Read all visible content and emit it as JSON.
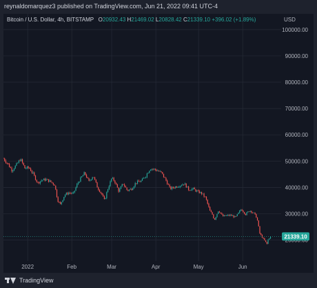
{
  "header": {
    "text": "reynaldomarquez3 published on TradingView.com, Jun 21, 2022 09:41 UTC-4"
  },
  "legend": {
    "symbol": "Bitcoin / U.S. Dollar, 4h, BITSTAMP",
    "o_label": "O",
    "o_value": "20932.43",
    "h_label": "H",
    "h_value": "21469.02",
    "l_label": "L",
    "l_value": "20828.42",
    "c_label": "C",
    "c_value": "21339.10",
    "change": "+396.02 (+1.89%)"
  },
  "footer": {
    "logo_text": "TradingView"
  },
  "colors": {
    "up": "#26a69a",
    "down": "#ef5350",
    "price_badge": "#26a69a",
    "grid": "#262b37",
    "axis_text": "#b2b5be"
  },
  "chart_data": {
    "type": "candlestick",
    "currency_label": "USD",
    "ylim": [
      12000,
      106000
    ],
    "yticks": [
      {
        "value": 100000,
        "label": "100000.00"
      },
      {
        "value": 90000,
        "label": "90000.00"
      },
      {
        "value": 80000,
        "label": "80000.00"
      },
      {
        "value": 70000,
        "label": "70000.00"
      },
      {
        "value": 60000,
        "label": "60000.00"
      },
      {
        "value": 50000,
        "label": "50000.00"
      },
      {
        "value": 40000,
        "label": "40000.00"
      },
      {
        "value": 30000,
        "label": "30000.00"
      },
      {
        "value": 20000,
        "label": "20000.00"
      }
    ],
    "xticks": [
      {
        "date": "2022-01-01",
        "label": "2022"
      },
      {
        "date": "2022-02-01",
        "label": "Feb"
      },
      {
        "date": "2022-03-01",
        "label": "Mar"
      },
      {
        "date": "2022-04-01",
        "label": "Apr"
      },
      {
        "date": "2022-05-01",
        "label": "May"
      },
      {
        "date": "2022-06-01",
        "label": "Jun"
      }
    ],
    "x_range": [
      "2021-12-15",
      "2022-06-28"
    ],
    "last_price": 21339.1,
    "last_price_label": "21339.10",
    "price_path": [
      [
        "2021-12-15",
        51000
      ],
      [
        "2021-12-18",
        49000
      ],
      [
        "2021-12-21",
        46500
      ],
      [
        "2021-12-24",
        48500
      ],
      [
        "2021-12-27",
        50800
      ],
      [
        "2021-12-30",
        47300
      ],
      [
        "2022-01-02",
        47500
      ],
      [
        "2022-01-05",
        45000
      ],
      [
        "2022-01-08",
        41700
      ],
      [
        "2022-01-11",
        42800
      ],
      [
        "2022-01-14",
        43000
      ],
      [
        "2022-01-17",
        42200
      ],
      [
        "2022-01-20",
        41000
      ],
      [
        "2022-01-22",
        35200
      ],
      [
        "2022-01-24",
        33500
      ],
      [
        "2022-01-27",
        37200
      ],
      [
        "2022-01-30",
        38000
      ],
      [
        "2022-02-02",
        37500
      ],
      [
        "2022-02-05",
        41500
      ],
      [
        "2022-02-08",
        44000
      ],
      [
        "2022-02-10",
        45500
      ],
      [
        "2022-02-13",
        42200
      ],
      [
        "2022-02-16",
        44500
      ],
      [
        "2022-02-19",
        40000
      ],
      [
        "2022-02-22",
        37500
      ],
      [
        "2022-02-24",
        35000
      ],
      [
        "2022-02-26",
        39000
      ],
      [
        "2022-03-01",
        43500
      ],
      [
        "2022-03-03",
        42500
      ],
      [
        "2022-03-06",
        38500
      ],
      [
        "2022-03-09",
        41500
      ],
      [
        "2022-03-12",
        38800
      ],
      [
        "2022-03-15",
        39500
      ],
      [
        "2022-03-18",
        41800
      ],
      [
        "2022-03-22",
        42500
      ],
      [
        "2022-03-25",
        44500
      ],
      [
        "2022-03-28",
        47200
      ],
      [
        "2022-03-30",
        47000
      ],
      [
        "2022-04-02",
        46500
      ],
      [
        "2022-04-05",
        45500
      ],
      [
        "2022-04-08",
        42800
      ],
      [
        "2022-04-11",
        39500
      ],
      [
        "2022-04-14",
        40100
      ],
      [
        "2022-04-18",
        40800
      ],
      [
        "2022-04-21",
        41500
      ],
      [
        "2022-04-24",
        39200
      ],
      [
        "2022-04-27",
        39500
      ],
      [
        "2022-04-30",
        38500
      ],
      [
        "2022-05-03",
        37800
      ],
      [
        "2022-05-06",
        36000
      ],
      [
        "2022-05-09",
        31000
      ],
      [
        "2022-05-11",
        29500
      ],
      [
        "2022-05-12",
        27500
      ],
      [
        "2022-05-15",
        31300
      ],
      [
        "2022-05-18",
        29000
      ],
      [
        "2022-05-21",
        29300
      ],
      [
        "2022-05-24",
        29400
      ],
      [
        "2022-05-27",
        28600
      ],
      [
        "2022-05-31",
        31800
      ],
      [
        "2022-06-03",
        29800
      ],
      [
        "2022-06-06",
        31300
      ],
      [
        "2022-06-09",
        30100
      ],
      [
        "2022-06-11",
        28400
      ],
      [
        "2022-06-13",
        22500
      ],
      [
        "2022-06-15",
        20800
      ],
      [
        "2022-06-18",
        18500
      ],
      [
        "2022-06-19",
        20500
      ],
      [
        "2022-06-21",
        21339
      ]
    ]
  }
}
